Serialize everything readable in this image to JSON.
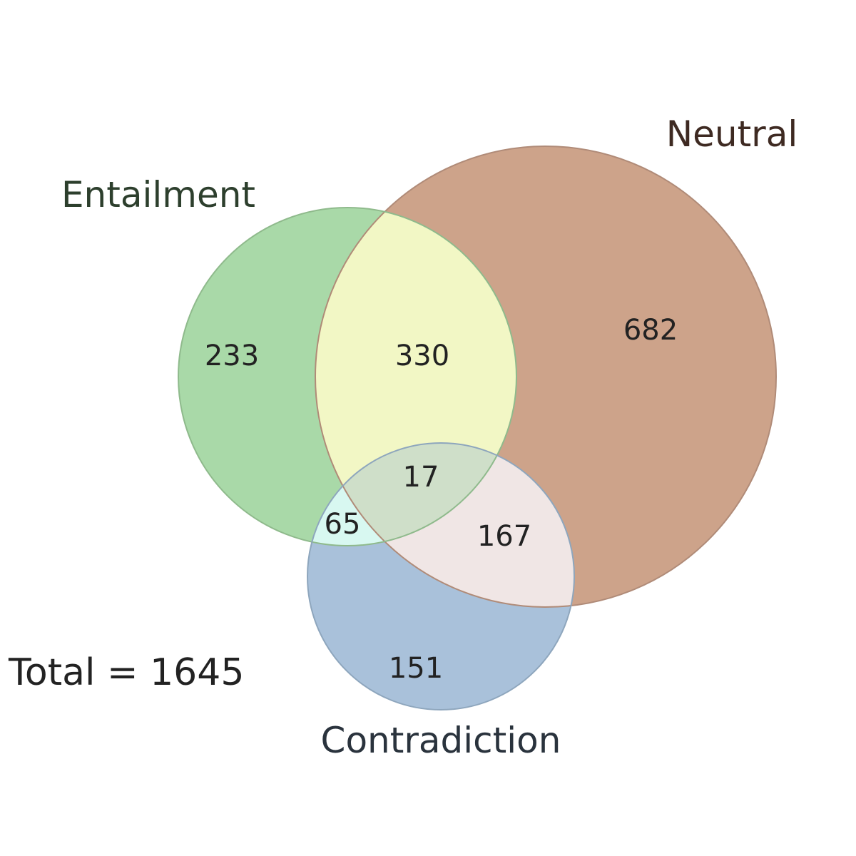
{
  "venn": {
    "sets": {
      "entailment": {
        "label": "Entailment",
        "color": "#a9d9a8",
        "stroke": "#8fba8c",
        "label_color": "#2d3f2d"
      },
      "neutral": {
        "label": "Neutral",
        "color": "#cda38a",
        "stroke": "#b08b78",
        "label_color": "#3e2a22"
      },
      "contradiction": {
        "label": "Contradiction",
        "color": "#a9c1da",
        "stroke": "#8ea6bd",
        "label_color": "#2a333d"
      }
    },
    "region_colors": {
      "entailment_neutral": "#f2f7c5",
      "entailment_contradiction": "#d8f8f1",
      "neutral_contradiction": "#f0e6e5",
      "all_three": "#cfdfc9"
    },
    "regions": {
      "entailment_only": "233",
      "neutral_only": "682",
      "contradiction_only": "151",
      "entailment_neutral": "330",
      "entailment_contradiction": "65",
      "neutral_contradiction": "167",
      "all_three": "17"
    },
    "total_label": "Total = 1645"
  }
}
